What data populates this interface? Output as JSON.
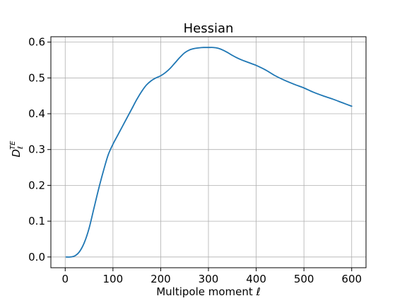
{
  "chart_data": {
    "type": "line",
    "title": "Hessian",
    "xlabel": "Multipole moment ℓ",
    "ylabel_base": "D",
    "ylabel_sub": "ℓ",
    "ylabel_sup": "TE",
    "xlim": [
      -30,
      630
    ],
    "ylim": [
      -0.03,
      0.615
    ],
    "xticks": [
      0,
      100,
      200,
      300,
      400,
      500,
      600
    ],
    "xtick_labels": [
      "0",
      "100",
      "200",
      "300",
      "400",
      "500",
      "600"
    ],
    "yticks": [
      0.0,
      0.1,
      0.2,
      0.3,
      0.4,
      0.5,
      0.6
    ],
    "ytick_labels": [
      "0.0",
      "0.1",
      "0.2",
      "0.3",
      "0.4",
      "0.5",
      "0.6"
    ],
    "grid": true,
    "line_color": "#1f77b4",
    "series": [
      {
        "x": [
          2,
          10,
          20,
          30,
          40,
          50,
          60,
          70,
          80,
          90,
          100,
          110,
          120,
          130,
          140,
          150,
          160,
          170,
          180,
          190,
          200,
          210,
          220,
          230,
          240,
          250,
          260,
          270,
          280,
          290,
          300,
          310,
          320,
          330,
          340,
          350,
          360,
          370,
          380,
          390,
          400,
          420,
          440,
          460,
          480,
          500,
          520,
          540,
          560,
          580,
          600
        ],
        "y": [
          0.0,
          0.0,
          0.003,
          0.015,
          0.04,
          0.08,
          0.135,
          0.19,
          0.24,
          0.285,
          0.315,
          0.34,
          0.365,
          0.39,
          0.415,
          0.44,
          0.462,
          0.48,
          0.492,
          0.5,
          0.506,
          0.515,
          0.527,
          0.542,
          0.557,
          0.57,
          0.578,
          0.582,
          0.584,
          0.585,
          0.585,
          0.585,
          0.583,
          0.578,
          0.571,
          0.563,
          0.556,
          0.55,
          0.545,
          0.54,
          0.535,
          0.522,
          0.506,
          0.493,
          0.482,
          0.472,
          0.46,
          0.45,
          0.441,
          0.431,
          0.421
        ]
      }
    ]
  }
}
